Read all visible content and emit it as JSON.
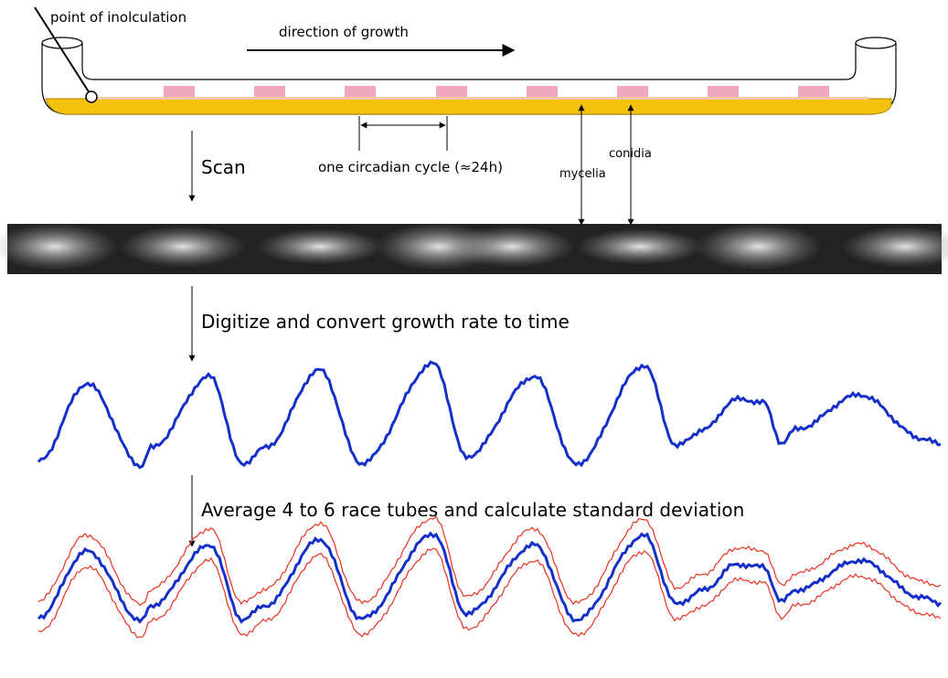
{
  "labels": {
    "inoculation": "point of inolculation",
    "direction": "direction of growth",
    "scan": "Scan",
    "cycle": "one circadian cycle (≈24h)",
    "mycelia": "mycelia",
    "conidia": "conidia",
    "digitize": "Digitize and convert growth rate to time",
    "average": "Average 4 to 6 race tubes and calculate standard deviation"
  }
}
